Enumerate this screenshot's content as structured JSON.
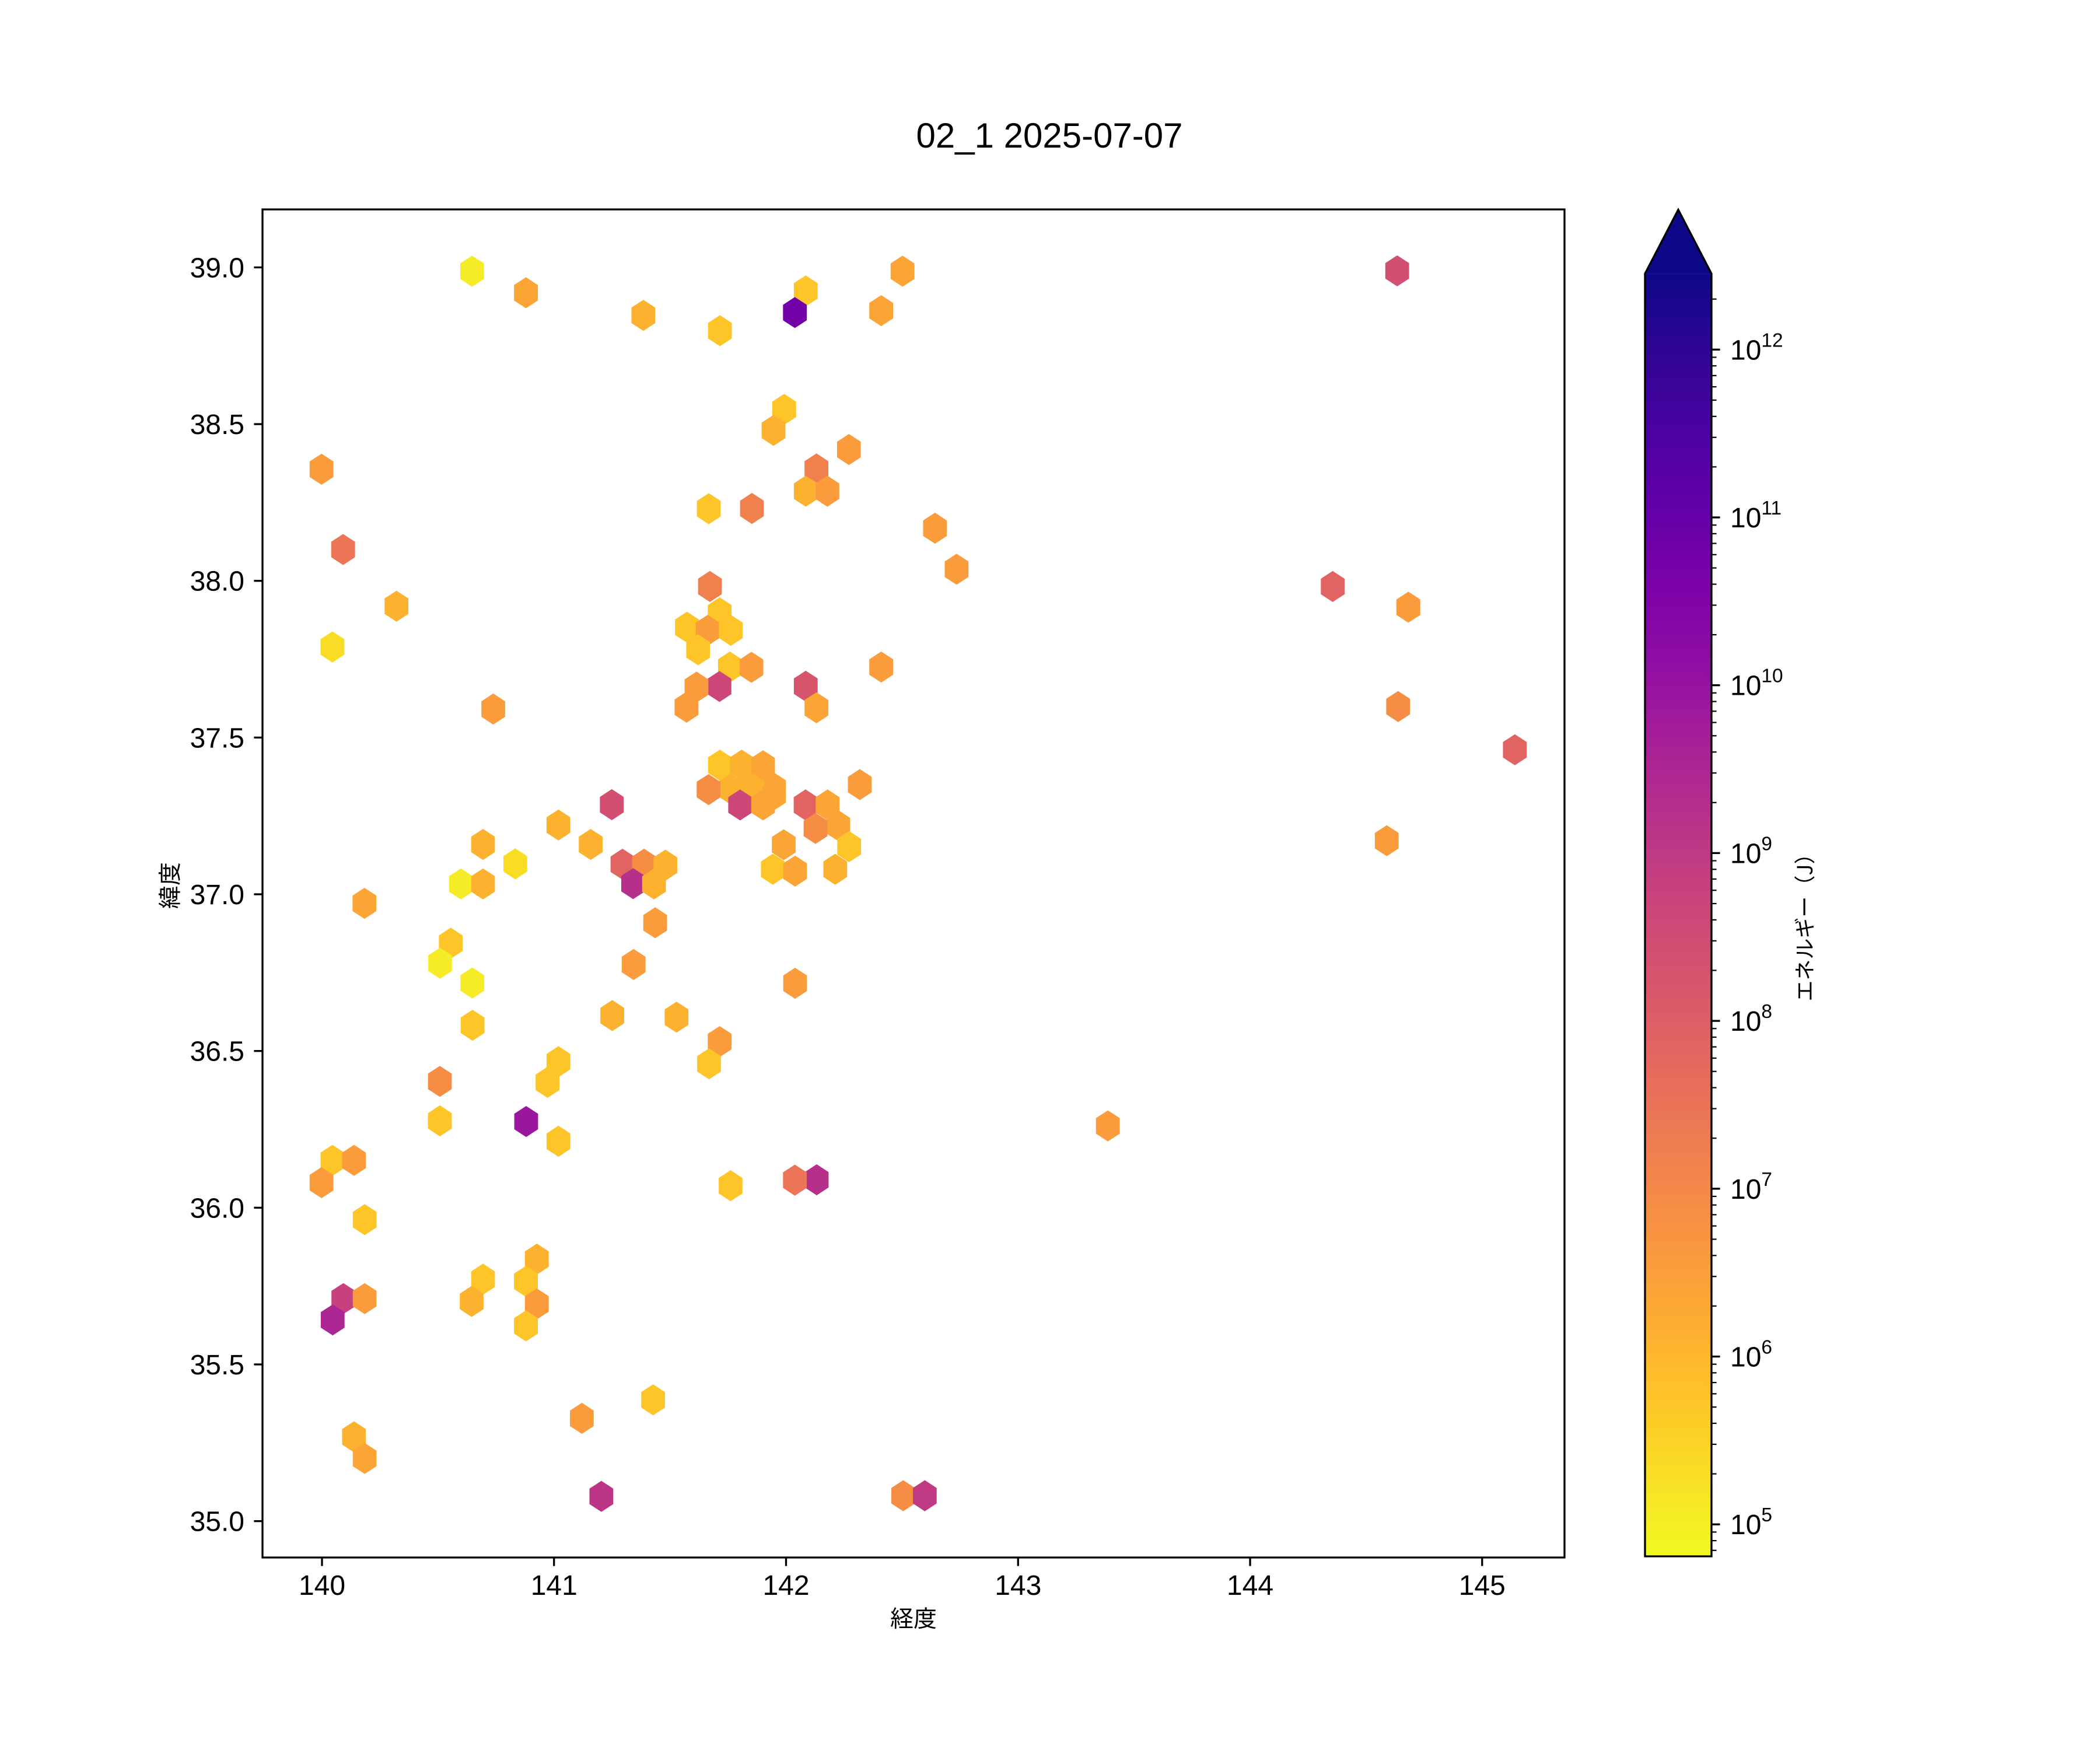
{
  "title": "02_1 2025-07-07",
  "axes": {
    "xlabel": "経度",
    "ylabel": "緯度",
    "xlim": [
      139.7436,
      145.355
    ],
    "ylim": [
      34.884,
      39.185
    ],
    "xticks": [
      140,
      141,
      142,
      143,
      144,
      145
    ],
    "yticks": [
      35.0,
      35.5,
      36.0,
      36.5,
      37.0,
      37.5,
      38.0,
      38.5,
      39.0
    ]
  },
  "colorbar": {
    "label": "エネルギー（J）",
    "scale": "log",
    "tick_exponents": [
      5,
      6,
      7,
      8,
      9,
      10,
      11,
      12
    ],
    "vmin": 64000.0,
    "vmax": 2800000000000.0,
    "extend": "max",
    "colormap": "plasma_r",
    "plasma_stops": [
      "#0d0887",
      "#2a0593",
      "#41049d",
      "#5601a4",
      "#6a00a8",
      "#7e03a8",
      "#8f0da4",
      "#a11b9b",
      "#b12a90",
      "#bf3984",
      "#cc4778",
      "#d6556d",
      "#e16462",
      "#ea7457",
      "#f2844b",
      "#f89540",
      "#fca636",
      "#feba2c",
      "#fcce25",
      "#f7e425",
      "#f0f921"
    ]
  },
  "chart_data": {
    "type": "scatter",
    "marker": "hexagon",
    "title": "02_1 2025-07-07",
    "xlabel": "経度",
    "ylabel": "緯度",
    "series_label": "エネルギー（J）",
    "points": [
      {
        "lon": 144.634,
        "lat": 38.989,
        "energy_j": 250000000.0,
        "color": "#d24f71"
      },
      {
        "lon": 140.647,
        "lat": 38.988,
        "energy_j": 120000.0,
        "color": "#f5eb27"
      },
      {
        "lon": 142.502,
        "lat": 38.988,
        "energy_j": 2400000.0,
        "color": "#fca537"
      },
      {
        "lon": 142.085,
        "lat": 38.925,
        "energy_j": 580000.0,
        "color": "#fdc527"
      },
      {
        "lon": 140.879,
        "lat": 38.919,
        "energy_j": 2400000.0,
        "color": "#fca537"
      },
      {
        "lon": 142.41,
        "lat": 38.862,
        "energy_j": 2400000.0,
        "color": "#fca537"
      },
      {
        "lon": 142.038,
        "lat": 38.856,
        "energy_j": 59000000000.0,
        "color": "#7201a8"
      },
      {
        "lon": 141.385,
        "lat": 38.847,
        "energy_j": 1300000.0,
        "color": "#fdb22f"
      },
      {
        "lon": 141.715,
        "lat": 38.798,
        "energy_j": 580000.0,
        "color": "#fdc527"
      },
      {
        "lon": 141.992,
        "lat": 38.547,
        "energy_j": 580000.0,
        "color": "#fdc527"
      },
      {
        "lon": 141.946,
        "lat": 38.48,
        "energy_j": 1300000.0,
        "color": "#fdb22f"
      },
      {
        "lon": 142.271,
        "lat": 38.419,
        "energy_j": 3700000.0,
        "color": "#fa9c3c"
      },
      {
        "lon": 142.131,
        "lat": 38.357,
        "energy_j": 15000000.0,
        "color": "#f0804e"
      },
      {
        "lon": 139.998,
        "lat": 38.356,
        "energy_j": 3700000.0,
        "color": "#fa9c3c"
      },
      {
        "lon": 142.085,
        "lat": 38.286,
        "energy_j": 1300000.0,
        "color": "#fdb22f"
      },
      {
        "lon": 142.178,
        "lat": 38.286,
        "energy_j": 3700000.0,
        "color": "#fa9c3c"
      },
      {
        "lon": 141.853,
        "lat": 38.231,
        "energy_j": 15000000.0,
        "color": "#f0804e"
      },
      {
        "lon": 141.667,
        "lat": 38.23,
        "energy_j": 580000.0,
        "color": "#fdc527"
      },
      {
        "lon": 142.642,
        "lat": 38.168,
        "energy_j": 3700000.0,
        "color": "#fa9c3c"
      },
      {
        "lon": 140.091,
        "lat": 38.1,
        "energy_j": 28000000.0,
        "color": "#eb7556"
      },
      {
        "lon": 142.735,
        "lat": 38.037,
        "energy_j": 3700000.0,
        "color": "#fa9c3c"
      },
      {
        "lon": 141.672,
        "lat": 37.982,
        "energy_j": 15000000.0,
        "color": "#f0804e"
      },
      {
        "lon": 144.356,
        "lat": 37.982,
        "energy_j": 73000000.0,
        "color": "#e16462"
      },
      {
        "lon": 140.321,
        "lat": 37.919,
        "energy_j": 1300000.0,
        "color": "#fdb22f"
      },
      {
        "lon": 144.682,
        "lat": 37.916,
        "energy_j": 3700000.0,
        "color": "#fa9c3c"
      },
      {
        "lon": 141.714,
        "lat": 37.898,
        "energy_j": 580000.0,
        "color": "#fdc527"
      },
      {
        "lon": 141.573,
        "lat": 37.852,
        "energy_j": 580000.0,
        "color": "#fdc527"
      },
      {
        "lon": 141.662,
        "lat": 37.842,
        "energy_j": 3700000.0,
        "color": "#fa9c3c"
      },
      {
        "lon": 141.762,
        "lat": 37.842,
        "energy_j": 580000.0,
        "color": "#fdc527"
      },
      {
        "lon": 140.045,
        "lat": 37.789,
        "energy_j": 220000.0,
        "color": "#f9dc24"
      },
      {
        "lon": 141.621,
        "lat": 37.78,
        "energy_j": 580000.0,
        "color": "#fdc527"
      },
      {
        "lon": 141.758,
        "lat": 37.725,
        "energy_j": 580000.0,
        "color": "#fdc527"
      },
      {
        "lon": 142.41,
        "lat": 37.725,
        "energy_j": 3700000.0,
        "color": "#fa9c3c"
      },
      {
        "lon": 141.851,
        "lat": 37.724,
        "energy_j": 3700000.0,
        "color": "#fa9c3c"
      },
      {
        "lon": 142.085,
        "lat": 37.664,
        "energy_j": 180000000.0,
        "color": "#d6556d"
      },
      {
        "lon": 141.713,
        "lat": 37.663,
        "energy_j": 430000000.0,
        "color": "#cc4778"
      },
      {
        "lon": 141.614,
        "lat": 37.661,
        "energy_j": 3700000.0,
        "color": "#fa9c3c"
      },
      {
        "lon": 144.638,
        "lat": 37.599,
        "energy_j": 7400000.0,
        "color": "#f68d45"
      },
      {
        "lon": 141.571,
        "lat": 37.597,
        "energy_j": 3700000.0,
        "color": "#fa9c3c"
      },
      {
        "lon": 142.131,
        "lat": 37.595,
        "energy_j": 2400000.0,
        "color": "#fca537"
      },
      {
        "lon": 140.738,
        "lat": 37.591,
        "energy_j": 3700000.0,
        "color": "#fa9c3c"
      },
      {
        "lon": 145.141,
        "lat": 37.461,
        "energy_j": 73000000.0,
        "color": "#e16462"
      },
      {
        "lon": 141.715,
        "lat": 37.412,
        "energy_j": 580000.0,
        "color": "#fdc527"
      },
      {
        "lon": 141.809,
        "lat": 37.412,
        "energy_j": 1300000.0,
        "color": "#fdb22f"
      },
      {
        "lon": 141.901,
        "lat": 37.41,
        "energy_j": 2400000.0,
        "color": "#fca537"
      },
      {
        "lon": 142.318,
        "lat": 37.35,
        "energy_j": 3700000.0,
        "color": "#fa9c3c"
      },
      {
        "lon": 141.948,
        "lat": 37.339,
        "energy_j": 2400000.0,
        "color": "#fca537"
      },
      {
        "lon": 141.761,
        "lat": 37.336,
        "energy_j": 1300000.0,
        "color": "#fdb22f"
      },
      {
        "lon": 141.855,
        "lat": 37.336,
        "energy_j": 1300000.0,
        "color": "#fdb22f"
      },
      {
        "lon": 141.666,
        "lat": 37.334,
        "energy_j": 7400000.0,
        "color": "#f68d45"
      },
      {
        "lon": 141.948,
        "lat": 37.317,
        "energy_j": 2400000.0,
        "color": "#fca537"
      },
      {
        "lon": 141.249,
        "lat": 37.286,
        "energy_j": 250000000.0,
        "color": "#d24f71"
      },
      {
        "lon": 141.802,
        "lat": 37.285,
        "energy_j": 430000000.0,
        "color": "#cc4778"
      },
      {
        "lon": 141.901,
        "lat": 37.285,
        "energy_j": 2400000.0,
        "color": "#fca537"
      },
      {
        "lon": 142.084,
        "lat": 37.285,
        "energy_j": 73000000.0,
        "color": "#e16462"
      },
      {
        "lon": 142.179,
        "lat": 37.285,
        "energy_j": 2400000.0,
        "color": "#fca537"
      },
      {
        "lon": 141.019,
        "lat": 37.221,
        "energy_j": 1300000.0,
        "color": "#fdb22f"
      },
      {
        "lon": 142.225,
        "lat": 37.219,
        "energy_j": 2400000.0,
        "color": "#fca537"
      },
      {
        "lon": 142.127,
        "lat": 37.21,
        "energy_j": 7400000.0,
        "color": "#f68d45"
      },
      {
        "lon": 144.589,
        "lat": 37.171,
        "energy_j": 3700000.0,
        "color": "#fa9c3c"
      },
      {
        "lon": 140.694,
        "lat": 37.159,
        "energy_j": 1300000.0,
        "color": "#fdb22f"
      },
      {
        "lon": 141.158,
        "lat": 37.159,
        "energy_j": 1300000.0,
        "color": "#fdb22f"
      },
      {
        "lon": 141.99,
        "lat": 37.158,
        "energy_j": 2400000.0,
        "color": "#fca537"
      },
      {
        "lon": 142.272,
        "lat": 37.152,
        "energy_j": 580000.0,
        "color": "#fdc527"
      },
      {
        "lon": 140.833,
        "lat": 37.097,
        "energy_j": 220000.0,
        "color": "#f9dc24"
      },
      {
        "lon": 141.295,
        "lat": 37.096,
        "energy_j": 73000000.0,
        "color": "#e16462"
      },
      {
        "lon": 141.388,
        "lat": 37.096,
        "energy_j": 7400000.0,
        "color": "#f68d45"
      },
      {
        "lon": 141.48,
        "lat": 37.093,
        "energy_j": 1300000.0,
        "color": "#fdb22f"
      },
      {
        "lon": 141.943,
        "lat": 37.08,
        "energy_j": 580000.0,
        "color": "#fdc527"
      },
      {
        "lon": 142.212,
        "lat": 37.08,
        "energy_j": 1300000.0,
        "color": "#fdb22f"
      },
      {
        "lon": 142.039,
        "lat": 37.074,
        "energy_j": 2400000.0,
        "color": "#fca537"
      },
      {
        "lon": 141.341,
        "lat": 37.034,
        "energy_j": 1700000000.0,
        "color": "#b6308b"
      },
      {
        "lon": 140.599,
        "lat": 37.033,
        "energy_j": 120000.0,
        "color": "#f5eb27"
      },
      {
        "lon": 140.694,
        "lat": 37.033,
        "energy_j": 1300000.0,
        "color": "#fdb22f"
      },
      {
        "lon": 141.431,
        "lat": 37.033,
        "energy_j": 1300000.0,
        "color": "#fdb22f"
      },
      {
        "lon": 140.183,
        "lat": 36.971,
        "energy_j": 2400000.0,
        "color": "#fca537"
      },
      {
        "lon": 141.436,
        "lat": 36.909,
        "energy_j": 3700000.0,
        "color": "#fa9c3c"
      },
      {
        "lon": 140.555,
        "lat": 36.844,
        "energy_j": 580000.0,
        "color": "#fdc527"
      },
      {
        "lon": 140.509,
        "lat": 36.78,
        "energy_j": 120000.0,
        "color": "#f5eb27"
      },
      {
        "lon": 141.343,
        "lat": 36.776,
        "energy_j": 3700000.0,
        "color": "#fa9c3c"
      },
      {
        "lon": 140.648,
        "lat": 36.717,
        "energy_j": 120000.0,
        "color": "#f5eb27"
      },
      {
        "lon": 142.039,
        "lat": 36.716,
        "energy_j": 3700000.0,
        "color": "#fa9c3c"
      },
      {
        "lon": 141.251,
        "lat": 36.613,
        "energy_j": 1300000.0,
        "color": "#fdb22f"
      },
      {
        "lon": 141.528,
        "lat": 36.608,
        "energy_j": 1300000.0,
        "color": "#fdb22f"
      },
      {
        "lon": 140.649,
        "lat": 36.582,
        "energy_j": 580000.0,
        "color": "#fdc527"
      },
      {
        "lon": 141.714,
        "lat": 36.53,
        "energy_j": 3700000.0,
        "color": "#fa9c3c"
      },
      {
        "lon": 141.019,
        "lat": 36.466,
        "energy_j": 580000.0,
        "color": "#fdc527"
      },
      {
        "lon": 141.668,
        "lat": 36.459,
        "energy_j": 580000.0,
        "color": "#fdc527"
      },
      {
        "lon": 140.508,
        "lat": 36.403,
        "energy_j": 7400000.0,
        "color": "#f68d45"
      },
      {
        "lon": 140.972,
        "lat": 36.4,
        "energy_j": 580000.0,
        "color": "#fdc527"
      },
      {
        "lon": 140.508,
        "lat": 36.277,
        "energy_j": 580000.0,
        "color": "#fdc527"
      },
      {
        "lon": 140.88,
        "lat": 36.275,
        "energy_j": 8500000000.0,
        "color": "#9a169f"
      },
      {
        "lon": 143.387,
        "lat": 36.261,
        "energy_j": 3700000.0,
        "color": "#fa9c3c"
      },
      {
        "lon": 141.019,
        "lat": 36.212,
        "energy_j": 580000.0,
        "color": "#fdc527"
      },
      {
        "lon": 140.045,
        "lat": 36.151,
        "energy_j": 580000.0,
        "color": "#fdc527"
      },
      {
        "lon": 140.138,
        "lat": 36.151,
        "energy_j": 3700000.0,
        "color": "#fa9c3c"
      },
      {
        "lon": 142.132,
        "lat": 36.089,
        "energy_j": 1700000000.0,
        "color": "#b6308b"
      },
      {
        "lon": 142.038,
        "lat": 36.088,
        "energy_j": 28000000.0,
        "color": "#eb7556"
      },
      {
        "lon": 139.998,
        "lat": 36.08,
        "energy_j": 3700000.0,
        "color": "#fa9c3c"
      },
      {
        "lon": 141.761,
        "lat": 36.07,
        "energy_j": 580000.0,
        "color": "#fdc527"
      },
      {
        "lon": 140.184,
        "lat": 35.962,
        "energy_j": 580000.0,
        "color": "#fdc527"
      },
      {
        "lon": 140.926,
        "lat": 35.836,
        "energy_j": 1300000.0,
        "color": "#fdb22f"
      },
      {
        "lon": 140.694,
        "lat": 35.772,
        "energy_j": 580000.0,
        "color": "#fdc527"
      },
      {
        "lon": 140.879,
        "lat": 35.765,
        "energy_j": 580000.0,
        "color": "#fdc527"
      },
      {
        "lon": 140.092,
        "lat": 35.71,
        "energy_j": 600000000.0,
        "color": "#c6417d"
      },
      {
        "lon": 140.184,
        "lat": 35.71,
        "energy_j": 3700000.0,
        "color": "#fa9c3c"
      },
      {
        "lon": 140.645,
        "lat": 35.701,
        "energy_j": 1300000.0,
        "color": "#fdb22f"
      },
      {
        "lon": 140.926,
        "lat": 35.693,
        "energy_j": 3700000.0,
        "color": "#fa9c3c"
      },
      {
        "lon": 140.046,
        "lat": 35.642,
        "energy_j": 3200000000.0,
        "color": "#ac2694"
      },
      {
        "lon": 140.879,
        "lat": 35.623,
        "energy_j": 580000.0,
        "color": "#fdc527"
      },
      {
        "lon": 141.427,
        "lat": 35.387,
        "energy_j": 580000.0,
        "color": "#fdc527"
      },
      {
        "lon": 141.12,
        "lat": 35.328,
        "energy_j": 3700000.0,
        "color": "#fa9c3c"
      },
      {
        "lon": 140.138,
        "lat": 35.269,
        "energy_j": 1300000.0,
        "color": "#fdb22f"
      },
      {
        "lon": 140.184,
        "lat": 35.2,
        "energy_j": 2400000.0,
        "color": "#fca537"
      },
      {
        "lon": 142.505,
        "lat": 35.081,
        "energy_j": 7400000.0,
        "color": "#f68d45"
      },
      {
        "lon": 142.598,
        "lat": 35.081,
        "energy_j": 940000000.0,
        "color": "#c03a83"
      },
      {
        "lon": 141.204,
        "lat": 35.079,
        "energy_j": 1200000000.0,
        "color": "#bc3587"
      }
    ]
  }
}
